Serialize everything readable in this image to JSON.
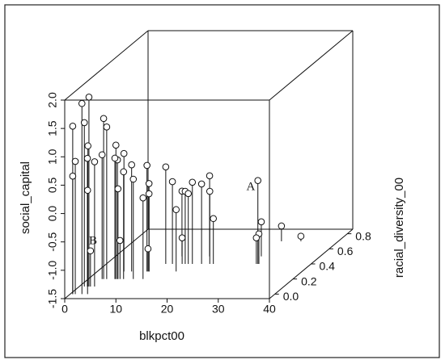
{
  "chart_data": {
    "type": "scatter3d",
    "xlabel": "blkpct00",
    "ylabel": "racial_diversity_00",
    "zlabel": "social_capital",
    "x": [
      1.9,
      2.3,
      1.0,
      0.5,
      3.0,
      3.6,
      1.7,
      1.0,
      1.6,
      3.0,
      2.7,
      5.4,
      5.7,
      5.2,
      5.2,
      6.7,
      6.9,
      0.5,
      3.4,
      5.8,
      8.8,
      9.7,
      10.1,
      10.1,
      10.7,
      11.6,
      12.9,
      13.0,
      15.4,
      16.0,
      16.8,
      18.6,
      18.4,
      20.2,
      15.4,
      20.9,
      29.6,
      28.5,
      29.8,
      29.3,
      28.9,
      32.7,
      2.2,
      6.2,
      9.9,
      14.8
    ],
    "y": [
      0.1,
      0.0,
      0.1,
      0.0,
      0.2,
      0.2,
      0.1,
      0.0,
      0.1,
      0.1,
      0.2,
      0.2,
      0.2,
      0.3,
      0.2,
      0.3,
      0.2,
      0.0,
      0.0,
      0.2,
      0.2,
      0.3,
      0.3,
      0.3,
      0.2,
      0.4,
      0.4,
      0.5,
      0.4,
      0.4,
      0.4,
      0.4,
      0.5,
      0.4,
      0.3,
      0.4,
      0.4,
      0.5,
      0.4,
      0.4,
      0.7,
      0.7,
      0.1,
      0.2,
      0.3,
      0.4
    ],
    "z": [
      1.84,
      1.86,
      1.39,
      1.46,
      1.33,
      1.18,
      0.98,
      0.84,
      0.76,
      0.7,
      0.69,
      0.86,
      0.6,
      0.58,
      0.63,
      0.38,
      0.39,
      0.58,
      0.33,
      0.09,
      0.26,
      0.37,
      0.05,
      -0.13,
      -0.07,
      0.21,
      -0.05,
      -0.35,
      -0.22,
      -0.26,
      -0.06,
      -0.09,
      -0.08,
      -0.22,
      -0.41,
      -0.7,
      -0.03,
      -0.89,
      -0.97,
      -1.04,
      -1.23,
      -1.41,
      -0.87,
      -0.82,
      -1.1,
      -1.04
    ],
    "xlim": [
      0,
      40
    ],
    "ylim": [
      -0.06,
      0.86
    ],
    "zlim": [
      -1.5,
      2.0
    ],
    "xticks": [
      0,
      10,
      20,
      30,
      40
    ],
    "yticks": [
      {
        "value": 0,
        "label": "0.0"
      },
      0.2,
      0.4,
      0.6,
      0.8
    ],
    "zticks": [
      -1.5,
      {
        "value": -1,
        "label": "-1.0"
      },
      -0.5,
      {
        "value": 0,
        "label": "0.0"
      },
      0.5,
      {
        "value": 1,
        "label": "1.0"
      },
      1.5,
      {
        "value": 2,
        "label": "2.0"
      }
    ],
    "annotations": [
      {
        "text": "A",
        "x": 28.2,
        "y": 0.4,
        "z": -0.15
      },
      {
        "text": "B",
        "x": 2.7,
        "y": 0.1,
        "z": -0.7
      }
    ]
  }
}
